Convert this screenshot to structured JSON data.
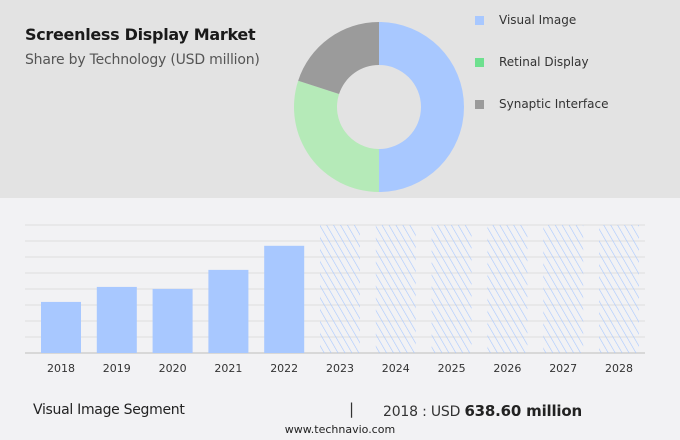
{
  "header": {
    "title": "Screenless Display Market",
    "subtitle": "Share by Technology (USD million)"
  },
  "footer": {
    "segment_label": "Visual Image Segment",
    "separator": "|",
    "year_prefix": "2018 : USD",
    "value": "638.60 million",
    "site": "www.technavio.com"
  },
  "chart_data": [
    {
      "type": "pie",
      "donut": true,
      "legend_position": "right",
      "labels": [
        "Visual Image",
        "Retinal Display",
        "Synaptic Interface"
      ],
      "values": [
        50,
        30,
        20
      ],
      "colors": [
        "#a8c8ff",
        "#b5eab8",
        "#9b9b9b"
      ],
      "legend_colors": [
        "#a8c8ff",
        "#6ee08f",
        "#9b9b9b"
      ]
    },
    {
      "type": "bar",
      "categories": [
        "2018",
        "2019",
        "2020",
        "2021",
        "2022",
        "2023",
        "2024",
        "2025",
        "2026",
        "2027",
        "2028"
      ],
      "values": [
        638.6,
        826,
        801,
        1039,
        1340,
        null,
        null,
        null,
        null,
        null,
        null
      ],
      "forecast_categories": [
        "2023",
        "2024",
        "2025",
        "2026",
        "2027",
        "2028"
      ],
      "ylim": [
        0,
        1600
      ],
      "grid": true,
      "bar_color": "#a8c8ff",
      "forecast_style": "hatched"
    }
  ]
}
